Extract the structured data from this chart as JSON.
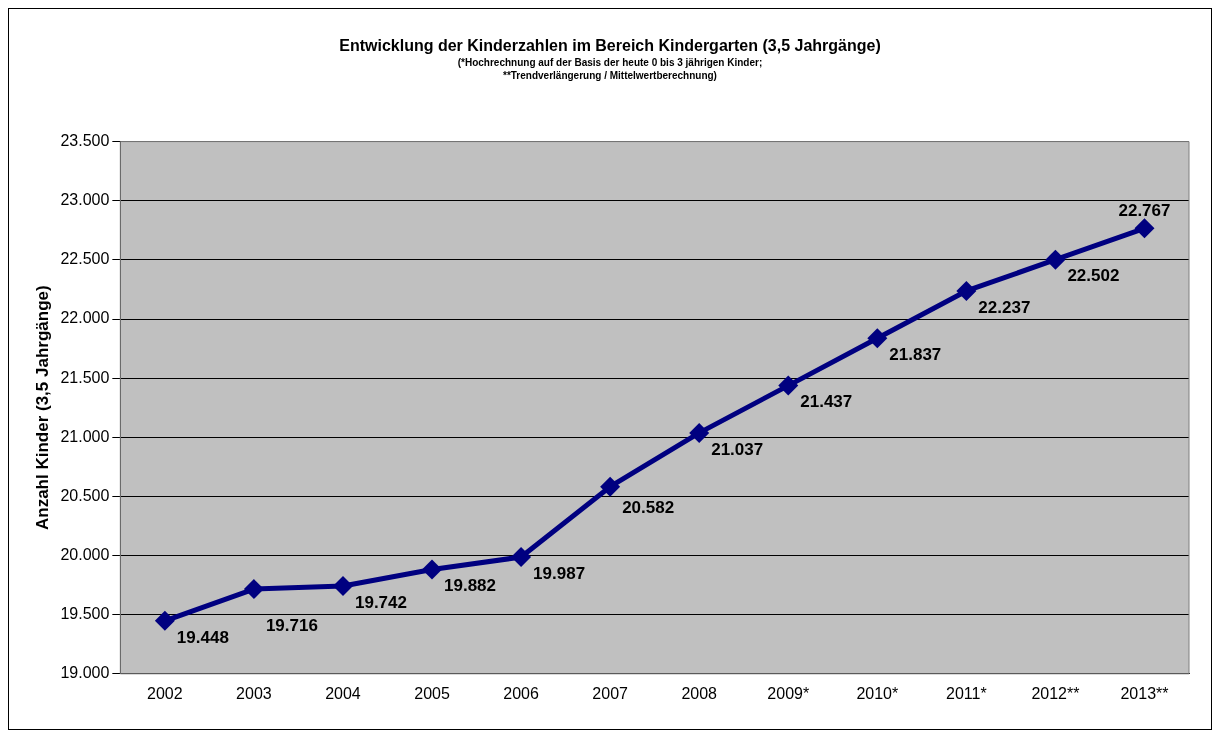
{
  "chart_data": {
    "type": "line",
    "title": "Entwicklung der Kinderzahlen im Bereich Kindergarten (3,5 Jahrgänge)",
    "subtitle": "(*Hochrechnung auf der Basis der heute 0 bis 3 jährigen Kinder;\n**Trendverlängerung / Mittelwertberechnung)",
    "ylabel": "Anzahl Kinder (3,5 Jahrgänge)",
    "categories": [
      "2002",
      "2003",
      "2004",
      "2005",
      "2006",
      "2007",
      "2008",
      "2009*",
      "2010*",
      "2011*",
      "2012**",
      "2013**"
    ],
    "series": [
      {
        "color": "#000080",
        "values": [
          19448,
          19716,
          19742,
          19882,
          19987,
          20582,
          21037,
          21437,
          21837,
          22237,
          22502,
          22767
        ],
        "value_labels": [
          "19.448",
          "19.716",
          "19.742",
          "19.882",
          "19.987",
          "20.582",
          "21.037",
          "21.437",
          "21.837",
          "22.237",
          "22.502",
          "22.767"
        ]
      }
    ],
    "ylim": [
      19000,
      23500
    ],
    "yticks": [
      {
        "value": 19000,
        "label": "19.000"
      },
      {
        "value": 19500,
        "label": "19.500"
      },
      {
        "value": 20000,
        "label": "20.000"
      },
      {
        "value": 20500,
        "label": "20.500"
      },
      {
        "value": 21000,
        "label": "21.000"
      },
      {
        "value": 21500,
        "label": "21.500"
      },
      {
        "value": 22000,
        "label": "22.000"
      },
      {
        "value": 22500,
        "label": "22.500"
      },
      {
        "value": 23000,
        "label": "23.000"
      },
      {
        "value": 23500,
        "label": "23.500"
      }
    ],
    "grid": "y",
    "legend": false,
    "marker": "diamond",
    "line_style": "solid"
  }
}
